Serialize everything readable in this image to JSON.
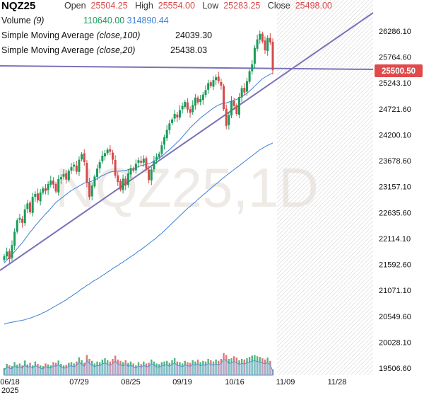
{
  "header": {
    "symbol": "NQZ25",
    "open_label": "Open",
    "open_value": "25504.25",
    "high_label": "High",
    "high_value": "25554.00",
    "low_label": "Low",
    "low_value": "25283.25",
    "close_label": "Close",
    "close_value": "25498.00",
    "volume_label": "Volume",
    "volume_param": "(9)",
    "volume_value": "110640.00",
    "volume_ma_value": "314890.44",
    "sma100_label": "Simple Moving Average",
    "sma100_param": "(close,100)",
    "sma100_value": "24039.30",
    "sma20_label": "Simple Moving Average",
    "sma20_param": "(close,20)",
    "sma20_value": "25438.03"
  },
  "last_price_badge": "25500.50",
  "watermark": "NQZ25,1D",
  "colors": {
    "up": "#1a9c5a",
    "down": "#d64a4a",
    "trendline": "#7a72b8",
    "sma": "#3c7fd8",
    "badge": "#e04a4a",
    "volume_area": "#a9c8ee"
  },
  "chart_data": {
    "type": "candlestick",
    "y_ticks": [
      "26286.10",
      "25764.60",
      "25243.10",
      "24721.60",
      "24200.10",
      "23678.60",
      "23157.10",
      "22635.60",
      "22114.10",
      "21592.60",
      "21071.10",
      "20549.60",
      "20028.10",
      "19506.60"
    ],
    "x_ticks": [
      "06/18",
      "07/29",
      "08/25",
      "09/19",
      "10/16",
      "11/09",
      "11/28"
    ],
    "x_year_label": "2025",
    "ylim": [
      19380,
      26480
    ],
    "candles_close": [
      21760,
      21850,
      21700,
      21980,
      22250,
      22480,
      22530,
      22430,
      22700,
      22820,
      22640,
      22950,
      23010,
      22880,
      23040,
      23120,
      23070,
      23210,
      23280,
      23200,
      23060,
      23310,
      23350,
      23410,
      23300,
      23480,
      23550,
      23600,
      23460,
      23700,
      23810,
      23650,
      23240,
      22950,
      23180,
      23360,
      23520,
      23650,
      23780,
      23830,
      23900,
      23860,
      23700,
      23380,
      23250,
      23100,
      23320,
      23180,
      23420,
      23530,
      23480,
      23620,
      23690,
      23640,
      23720,
      23520,
      23290,
      23500,
      23680,
      23760,
      23820,
      23990,
      24150,
      24300,
      24430,
      24510,
      24620,
      24550,
      24700,
      24780,
      24860,
      24710,
      24640,
      24800,
      24950,
      24850,
      24920,
      25010,
      25100,
      25240,
      25180,
      25300,
      25360,
      25280,
      25190,
      24720,
      24380,
      24600,
      24880,
      24780,
      24620,
      24960,
      25140,
      25050,
      25280,
      25480,
      25620,
      25950,
      26120,
      26230,
      26080,
      25900,
      26150,
      26060,
      25498
    ],
    "sma20": [
      21620,
      21680,
      21740,
      21790,
      21850,
      21910,
      21970,
      22030,
      22100,
      22170,
      22240,
      22300,
      22370,
      22430,
      22490,
      22550,
      22610,
      22660,
      22720,
      22780,
      22840,
      22880,
      22920,
      22960,
      23000,
      23040,
      23080,
      23110,
      23140,
      23170,
      23200,
      23230,
      23240,
      23250,
      23270,
      23290,
      23320,
      23350,
      23380,
      23400,
      23430,
      23450,
      23460,
      23470,
      23470,
      23470,
      23480,
      23480,
      23500,
      23510,
      23520,
      23540,
      23560,
      23580,
      23590,
      23610,
      23620,
      23640,
      23670,
      23700,
      23730,
      23770,
      23810,
      23860,
      23900,
      23950,
      24000,
      24050,
      24100,
      24160,
      24220,
      24280,
      24340,
      24390,
      24440,
      24490,
      24540,
      24580,
      24620,
      24660,
      24700,
      24740,
      24770,
      24800,
      24820,
      24830,
      24840,
      24860,
      24880,
      24900,
      24910,
      24940,
      24970,
      25000,
      25040,
      25080,
      25130,
      25180,
      25230,
      25280,
      25330,
      25360,
      25390,
      25420,
      25438
    ],
    "sma100": [
      20390,
      20410,
      20420,
      20430,
      20440,
      20450,
      20460,
      20470,
      20480,
      20500,
      20510,
      20530,
      20550,
      20570,
      20590,
      20620,
      20640,
      20670,
      20700,
      20730,
      20760,
      20790,
      20820,
      20850,
      20880,
      20920,
      20950,
      20990,
      21020,
      21060,
      21100,
      21130,
      21170,
      21200,
      21240,
      21270,
      21300,
      21330,
      21370,
      21400,
      21440,
      21470,
      21510,
      21540,
      21570,
      21610,
      21640,
      21680,
      21710,
      21750,
      21780,
      21820,
      21860,
      21890,
      21930,
      21970,
      22010,
      22050,
      22090,
      22130,
      22180,
      22220,
      22270,
      22320,
      22370,
      22420,
      22470,
      22520,
      22570,
      22620,
      22670,
      22720,
      22760,
      22810,
      22850,
      22900,
      22940,
      22990,
      23030,
      23080,
      23120,
      23170,
      23210,
      23250,
      23300,
      23340,
      23380,
      23420,
      23460,
      23500,
      23540,
      23580,
      23620,
      23660,
      23700,
      23740,
      23780,
      23820,
      23860,
      23900,
      23930,
      23960,
      23990,
      24010,
      24039.3
    ],
    "volume_relative": [
      0.22,
      0.35,
      0.3,
      0.28,
      0.4,
      0.32,
      0.36,
      0.3,
      0.45,
      0.33,
      0.38,
      0.3,
      0.42,
      0.35,
      0.3,
      0.28,
      0.36,
      0.33,
      0.3,
      0.4,
      0.38,
      0.45,
      0.35,
      0.3,
      0.32,
      0.38,
      0.4,
      0.36,
      0.42,
      0.55,
      0.46,
      0.38,
      0.62,
      0.5,
      0.44,
      0.36,
      0.42,
      0.4,
      0.48,
      0.52,
      0.46,
      0.42,
      0.5,
      0.6,
      0.48,
      0.44,
      0.4,
      0.46,
      0.38,
      0.42,
      0.36,
      0.3,
      0.4,
      0.34,
      0.42,
      0.36,
      0.38,
      0.48,
      0.42,
      0.36,
      0.34,
      0.4,
      0.42,
      0.44,
      0.38,
      0.46,
      0.52,
      0.42,
      0.4,
      0.36,
      0.44,
      0.4,
      0.38,
      0.46,
      0.42,
      0.48,
      0.4,
      0.44,
      0.42,
      0.5,
      0.46,
      0.42,
      0.48,
      0.44,
      0.5,
      0.68,
      0.62,
      0.5,
      0.52,
      0.58,
      0.54,
      0.46,
      0.5,
      0.48,
      0.52,
      0.56,
      0.6,
      0.62,
      0.58,
      0.56,
      0.52,
      0.48,
      0.54,
      0.44,
      0.18
    ]
  }
}
